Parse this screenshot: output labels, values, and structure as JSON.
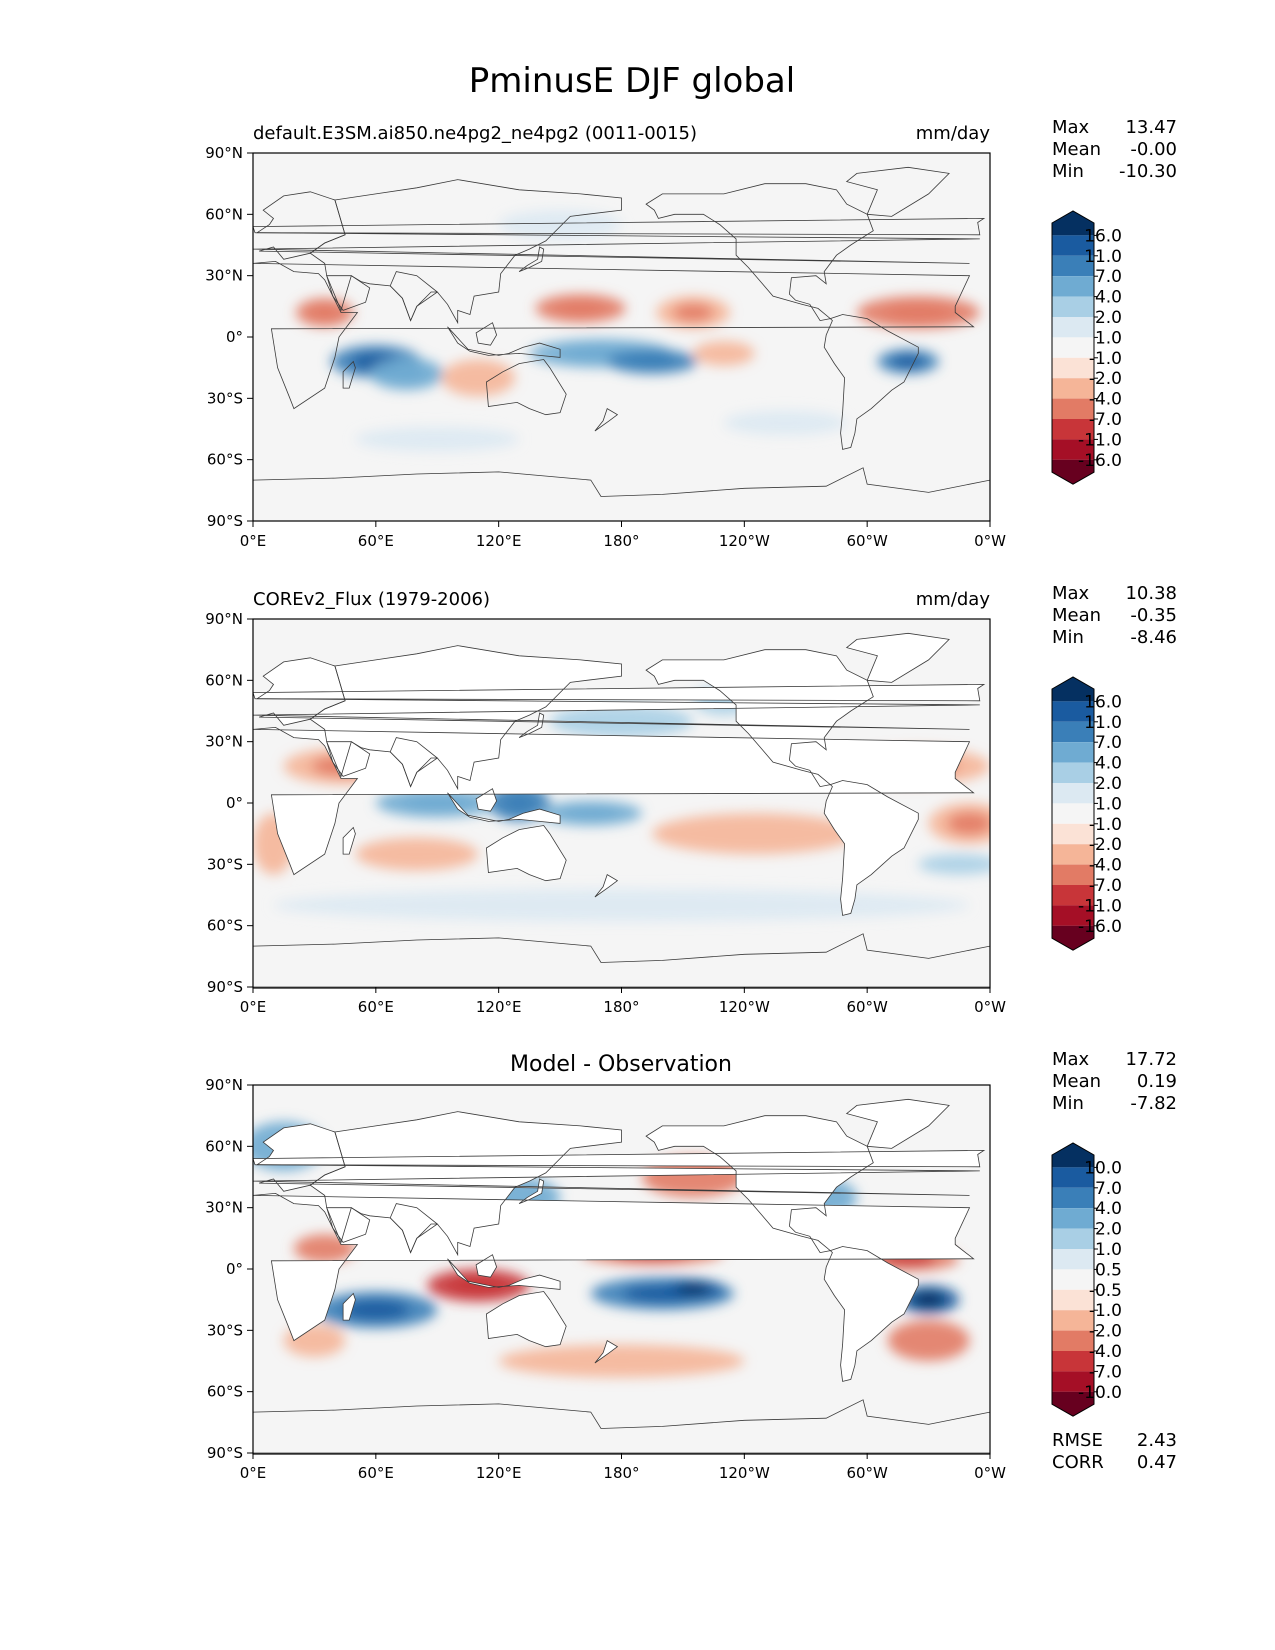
{
  "title": "PminusE DJF global",
  "x_ticks": [
    "0°E",
    "60°E",
    "120°E",
    "180°",
    "120°W",
    "60°W",
    "0°W"
  ],
  "y_ticks": [
    "90°N",
    "60°N",
    "30°N",
    "0°",
    "30°S",
    "60°S",
    "90°S"
  ],
  "stat_labels": {
    "max": "Max",
    "mean": "Mean",
    "min": "Min",
    "rmse": "RMSE",
    "corr": "CORR"
  },
  "colors": {
    "ramp": [
      "#67001f",
      "#a50f26",
      "#c83539",
      "#e27b65",
      "#f5b598",
      "#fbe2d6",
      "#f5f5f5",
      "#dce9f2",
      "#a9cfe5",
      "#6fabd2",
      "#3a7fb8",
      "#1a5ba0",
      "#053061"
    ],
    "land": "#ffffff",
    "coast": "#3a3a3a"
  },
  "chart_data": [
    {
      "type": "heatmap",
      "panel": "model",
      "left_title": "default.E3SM.ai850.ne4pg2_ne4pg2 (0011-0015)",
      "center_title": "",
      "units": "mm/day",
      "stats": {
        "max": "13.47",
        "mean": "-0.00",
        "min": "-10.30"
      },
      "colorbar_labels": [
        "16.0",
        "11.0",
        "7.0",
        "4.0",
        "2.0",
        "1.0",
        "-1.0",
        "-2.0",
        "-4.0",
        "-7.0",
        "-11.0",
        "-16.0"
      ],
      "xlim": [
        0,
        360
      ],
      "ylim": [
        -90,
        90
      ],
      "land_masked": false,
      "features": [
        {
          "lon": 60,
          "lat": -12,
          "rx": 22,
          "ry": 8,
          "value": 9
        },
        {
          "lon": 75,
          "lat": -18,
          "rx": 18,
          "ry": 8,
          "value": 4
        },
        {
          "lon": 170,
          "lat": -8,
          "rx": 35,
          "ry": 7,
          "value": 4
        },
        {
          "lon": 195,
          "lat": -12,
          "rx": 22,
          "ry": 6,
          "value": 7
        },
        {
          "lon": 320,
          "lat": -12,
          "rx": 15,
          "ry": 6,
          "value": 8
        },
        {
          "lon": 160,
          "lat": 14,
          "rx": 22,
          "ry": 7,
          "value": -5
        },
        {
          "lon": 215,
          "lat": 12,
          "rx": 18,
          "ry": 8,
          "value": -4
        },
        {
          "lon": 325,
          "lat": 12,
          "rx": 30,
          "ry": 8,
          "value": -4.5
        },
        {
          "lon": 35,
          "lat": 12,
          "rx": 14,
          "ry": 7,
          "value": -5
        },
        {
          "lon": 110,
          "lat": -20,
          "rx": 18,
          "ry": 9,
          "value": -3
        },
        {
          "lon": 230,
          "lat": -8,
          "rx": 15,
          "ry": 6,
          "value": -2.5
        },
        {
          "lon": 150,
          "lat": 55,
          "rx": 30,
          "ry": 7,
          "value": 1.5
        },
        {
          "lon": 260,
          "lat": -42,
          "rx": 30,
          "ry": 6,
          "value": 1.5
        },
        {
          "lon": 90,
          "lat": -50,
          "rx": 40,
          "ry": 6,
          "value": 1.5
        }
      ]
    },
    {
      "type": "heatmap",
      "panel": "observation",
      "left_title": "COREv2_Flux (1979-2006)",
      "center_title": "",
      "units": "mm/day",
      "stats": {
        "max": "10.38",
        "mean": "-0.35",
        "min": "-8.46"
      },
      "colorbar_labels": [
        "16.0",
        "11.0",
        "7.0",
        "4.0",
        "2.0",
        "1.0",
        "-1.0",
        "-2.0",
        "-4.0",
        "-7.0",
        "-11.0",
        "-16.0"
      ],
      "xlim": [
        0,
        360
      ],
      "ylim": [
        -90,
        90
      ],
      "land_masked": true,
      "features": [
        {
          "lon": 90,
          "lat": 0,
          "rx": 30,
          "ry": 7,
          "value": 4
        },
        {
          "lon": 130,
          "lat": 0,
          "rx": 15,
          "ry": 9,
          "value": 7
        },
        {
          "lon": 165,
          "lat": -5,
          "rx": 25,
          "ry": 6,
          "value": 4
        },
        {
          "lon": 180,
          "lat": 40,
          "rx": 35,
          "ry": 8,
          "value": 3
        },
        {
          "lon": 230,
          "lat": 50,
          "rx": 15,
          "ry": 7,
          "value": 3
        },
        {
          "lon": 345,
          "lat": -30,
          "rx": 20,
          "ry": 5,
          "value": 2
        },
        {
          "lon": 180,
          "lat": -50,
          "rx": 170,
          "ry": 8,
          "value": 1.5
        },
        {
          "lon": 155,
          "lat": 20,
          "rx": 35,
          "ry": 8,
          "value": -3.5
        },
        {
          "lon": 325,
          "lat": 18,
          "rx": 35,
          "ry": 9,
          "value": -4
        },
        {
          "lon": 45,
          "lat": 18,
          "rx": 30,
          "ry": 9,
          "value": -4
        },
        {
          "lon": 245,
          "lat": -15,
          "rx": 50,
          "ry": 10,
          "value": -3.5
        },
        {
          "lon": 350,
          "lat": -10,
          "rx": 20,
          "ry": 10,
          "value": -4
        },
        {
          "lon": 80,
          "lat": -25,
          "rx": 30,
          "ry": 8,
          "value": -3
        },
        {
          "lon": 10,
          "lat": -20,
          "rx": 10,
          "ry": 15,
          "value": -2.5
        }
      ]
    },
    {
      "type": "heatmap",
      "panel": "difference",
      "left_title": "",
      "center_title": "Model - Observation",
      "units": "",
      "stats": {
        "max": "17.72",
        "mean": "0.19",
        "min": "-7.82"
      },
      "metrics": {
        "rmse": "2.43",
        "corr": "0.47"
      },
      "colorbar_labels": [
        "10.0",
        "7.0",
        "4.0",
        "2.0",
        "1.0",
        "0.5",
        "-0.5",
        "-1.0",
        "-2.0",
        "-4.0",
        "-7.0",
        "-10.0"
      ],
      "xlim": [
        0,
        360
      ],
      "ylim": [
        -90,
        90
      ],
      "land_masked": true,
      "features": [
        {
          "lon": 60,
          "lat": -20,
          "rx": 30,
          "ry": 9,
          "value": 5
        },
        {
          "lon": 200,
          "lat": -12,
          "rx": 35,
          "ry": 8,
          "value": 5
        },
        {
          "lon": 215,
          "lat": -10,
          "rx": 15,
          "ry": 5,
          "value": 8
        },
        {
          "lon": 330,
          "lat": -15,
          "rx": 15,
          "ry": 7,
          "value": 9
        },
        {
          "lon": 130,
          "lat": 35,
          "rx": 20,
          "ry": 10,
          "value": 3
        },
        {
          "lon": 280,
          "lat": 35,
          "rx": 15,
          "ry": 9,
          "value": 3
        },
        {
          "lon": 15,
          "lat": 60,
          "rx": 20,
          "ry": 12,
          "value": 2
        },
        {
          "lon": 110,
          "lat": -8,
          "rx": 25,
          "ry": 8,
          "value": -5
        },
        {
          "lon": 195,
          "lat": 8,
          "rx": 35,
          "ry": 6,
          "value": -4
        },
        {
          "lon": 215,
          "lat": 45,
          "rx": 25,
          "ry": 10,
          "value": -3.5
        },
        {
          "lon": 320,
          "lat": 5,
          "rx": 25,
          "ry": 6,
          "value": -4
        },
        {
          "lon": 35,
          "lat": 10,
          "rx": 15,
          "ry": 7,
          "value": -3
        },
        {
          "lon": 180,
          "lat": -45,
          "rx": 60,
          "ry": 8,
          "value": -2
        },
        {
          "lon": 330,
          "lat": -35,
          "rx": 20,
          "ry": 10,
          "value": -2.5
        },
        {
          "lon": 30,
          "lat": -35,
          "rx": 15,
          "ry": 8,
          "value": -2
        }
      ]
    }
  ]
}
